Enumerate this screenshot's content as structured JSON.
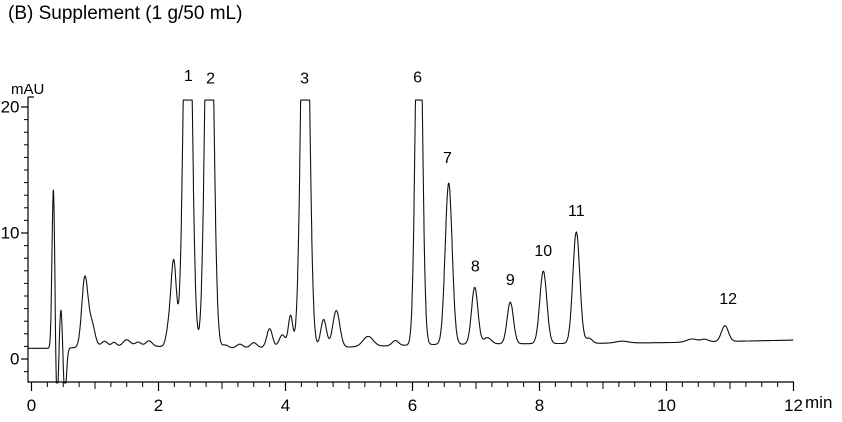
{
  "colors": {
    "background": "#ffffff",
    "trace": "#111111",
    "axis": "#000000",
    "text": "#000000"
  },
  "chart_data": {
    "type": "line",
    "subtype": "hplc-chromatogram",
    "title": "(B) Supplement (1 g/50 mL)",
    "xlabel": "min",
    "ylabel": "mAU",
    "xlim": [
      0,
      12
    ],
    "ylim_shown": [
      -2,
      21.5
    ],
    "x_major_ticks": [
      0,
      2,
      4,
      6,
      8,
      10,
      12
    ],
    "x_integer_ticks": [
      1,
      3,
      5,
      7,
      9,
      11
    ],
    "x_minor_tick_step": 0.25,
    "y_major_ticks": [
      0,
      10,
      20
    ],
    "y_minor_tick_step": 1,
    "grid": false,
    "legend": "none",
    "detector_saturation_mAU": 20.55,
    "peaks": [
      {
        "label": "1",
        "retention_min": 2.46,
        "apex_mAU": 20.55,
        "clipped": true,
        "sigma_min": 0.06,
        "amp": 40,
        "label_pos": {
          "t": 2.47,
          "mAU": 22.5
        }
      },
      {
        "label": "2",
        "retention_min": 2.8,
        "apex_mAU": 20.55,
        "clipped": true,
        "sigma_min": 0.06,
        "amp": 40,
        "label_pos": {
          "t": 2.82,
          "mAU": 22.3
        }
      },
      {
        "label": "3",
        "retention_min": 4.31,
        "apex_mAU": 20.55,
        "clipped": true,
        "sigma_min": 0.06,
        "amp": 40,
        "label_pos": {
          "t": 4.3,
          "mAU": 22.3
        }
      },
      {
        "label": "6",
        "retention_min": 6.1,
        "apex_mAU": 20.55,
        "clipped": true,
        "sigma_min": 0.05,
        "amp": 35,
        "label_pos": {
          "t": 6.08,
          "mAU": 22.4
        }
      },
      {
        "label": "7",
        "retention_min": 6.57,
        "apex_mAU": 14.0,
        "clipped": false,
        "sigma_min": 0.055,
        "amp": 12.8,
        "label_pos": {
          "t": 6.55,
          "mAU": 16.0
        }
      },
      {
        "label": "8",
        "retention_min": 6.98,
        "apex_mAU": 5.7,
        "clipped": false,
        "sigma_min": 0.05,
        "amp": 4.5,
        "label_pos": {
          "t": 6.99,
          "mAU": 7.4
        }
      },
      {
        "label": "9",
        "retention_min": 7.54,
        "apex_mAU": 4.5,
        "clipped": false,
        "sigma_min": 0.05,
        "amp": 3.3,
        "label_pos": {
          "t": 7.54,
          "mAU": 6.3
        }
      },
      {
        "label": "10",
        "retention_min": 8.06,
        "apex_mAU": 7.0,
        "clipped": false,
        "sigma_min": 0.055,
        "amp": 5.75,
        "label_pos": {
          "t": 8.06,
          "mAU": 8.6
        }
      },
      {
        "label": "11",
        "retention_min": 8.58,
        "apex_mAU": 10.1,
        "clipped": false,
        "sigma_min": 0.055,
        "amp": 8.85,
        "label_pos": {
          "t": 8.58,
          "mAU": 11.8
        }
      },
      {
        "label": "12",
        "retention_min": 10.92,
        "apex_mAU": 2.6,
        "clipped": false,
        "sigma_min": 0.055,
        "amp": 1.25,
        "label_pos": {
          "t": 10.97,
          "mAU": 4.8
        }
      }
    ],
    "minor_features": [
      [
        0.345,
        12.75,
        0.022
      ],
      [
        0.4,
        -4.5,
        0.022
      ],
      [
        0.465,
        3.3,
        0.022
      ],
      [
        0.525,
        -3.6,
        0.026
      ],
      [
        0.84,
        5.5,
        0.048
      ],
      [
        0.95,
        1.8,
        0.05
      ],
      [
        1.15,
        0.45,
        0.05
      ],
      [
        1.3,
        0.35,
        0.04
      ],
      [
        1.5,
        0.55,
        0.06
      ],
      [
        1.68,
        0.35,
        0.05
      ],
      [
        1.85,
        0.45,
        0.05
      ],
      [
        2.16,
        1.4,
        0.04
      ],
      [
        2.24,
        6.7,
        0.042
      ],
      [
        3.05,
        0.25,
        0.05
      ],
      [
        3.28,
        0.3,
        0.05
      ],
      [
        3.5,
        0.4,
        0.05
      ],
      [
        3.75,
        1.5,
        0.045
      ],
      [
        3.95,
        1.0,
        0.05
      ],
      [
        4.08,
        2.5,
        0.035
      ],
      [
        4.6,
        2.2,
        0.045
      ],
      [
        4.8,
        2.9,
        0.055
      ],
      [
        5.3,
        0.8,
        0.08
      ],
      [
        5.73,
        0.4,
        0.05
      ],
      [
        7.18,
        0.5,
        0.06
      ],
      [
        8.78,
        0.4,
        0.05
      ],
      [
        9.3,
        0.15,
        0.1
      ],
      [
        10.4,
        0.25,
        0.08
      ],
      [
        10.6,
        0.2,
        0.06
      ]
    ],
    "baseline_points": [
      [
        0.0,
        0.85
      ],
      [
        0.3,
        0.85
      ],
      [
        0.7,
        0.9
      ],
      [
        1.0,
        0.95
      ],
      [
        2.0,
        1.0
      ],
      [
        2.9,
        0.85
      ],
      [
        3.6,
        0.9
      ],
      [
        5.0,
        0.95
      ],
      [
        6.3,
        1.15
      ],
      [
        7.3,
        1.2
      ],
      [
        9.0,
        1.25
      ],
      [
        10.0,
        1.3
      ],
      [
        11.5,
        1.45
      ],
      [
        12.0,
        1.5
      ]
    ],
    "clip_bottom_mAU": -1.9
  }
}
